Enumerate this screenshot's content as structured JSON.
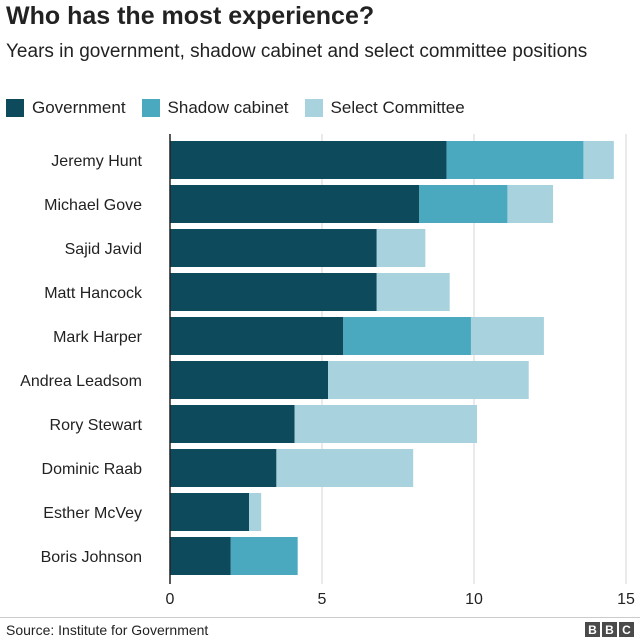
{
  "header": {
    "title": "Who has the most experience?",
    "subtitle": "Years in government, shadow cabinet and select committee positions"
  },
  "footer": {
    "source": "Source: Institute for Government",
    "logo_letters": [
      "B",
      "B",
      "C"
    ]
  },
  "colors": {
    "Government": "#0d4a5c",
    "Shadow cabinet": "#4aa8bf",
    "Select Committee": "#a7d2de",
    "axis": "#222222",
    "grid": "#d6d6d6"
  },
  "chart_data": {
    "type": "bar",
    "orientation": "horizontal",
    "stacked": true,
    "title": "Who has the most experience?",
    "subtitle": "Years in government, shadow cabinet and select committee positions",
    "categories": [
      "Jeremy Hunt",
      "Michael Gove",
      "Sajid Javid",
      "Matt Hancock",
      "Mark Harper",
      "Andrea Leadsom",
      "Rory Stewart",
      "Dominic Raab",
      "Esther McVey",
      "Boris Johnson"
    ],
    "series": [
      {
        "name": "Government",
        "values": [
          9.1,
          8.2,
          6.8,
          6.8,
          5.7,
          5.2,
          4.1,
          3.5,
          2.6,
          2.0
        ]
      },
      {
        "name": "Shadow cabinet",
        "values": [
          4.5,
          2.9,
          0,
          0,
          4.2,
          0,
          0,
          0,
          0,
          2.2
        ]
      },
      {
        "name": "Select Committee",
        "values": [
          1.0,
          1.5,
          1.6,
          2.4,
          2.4,
          6.6,
          6.0,
          4.5,
          0.4,
          0
        ]
      }
    ],
    "xticks": [
      0,
      5,
      10,
      15
    ],
    "xlim": [
      0,
      15
    ],
    "grid": true,
    "legend": "top-left",
    "source": "Source: Institute for Government"
  }
}
